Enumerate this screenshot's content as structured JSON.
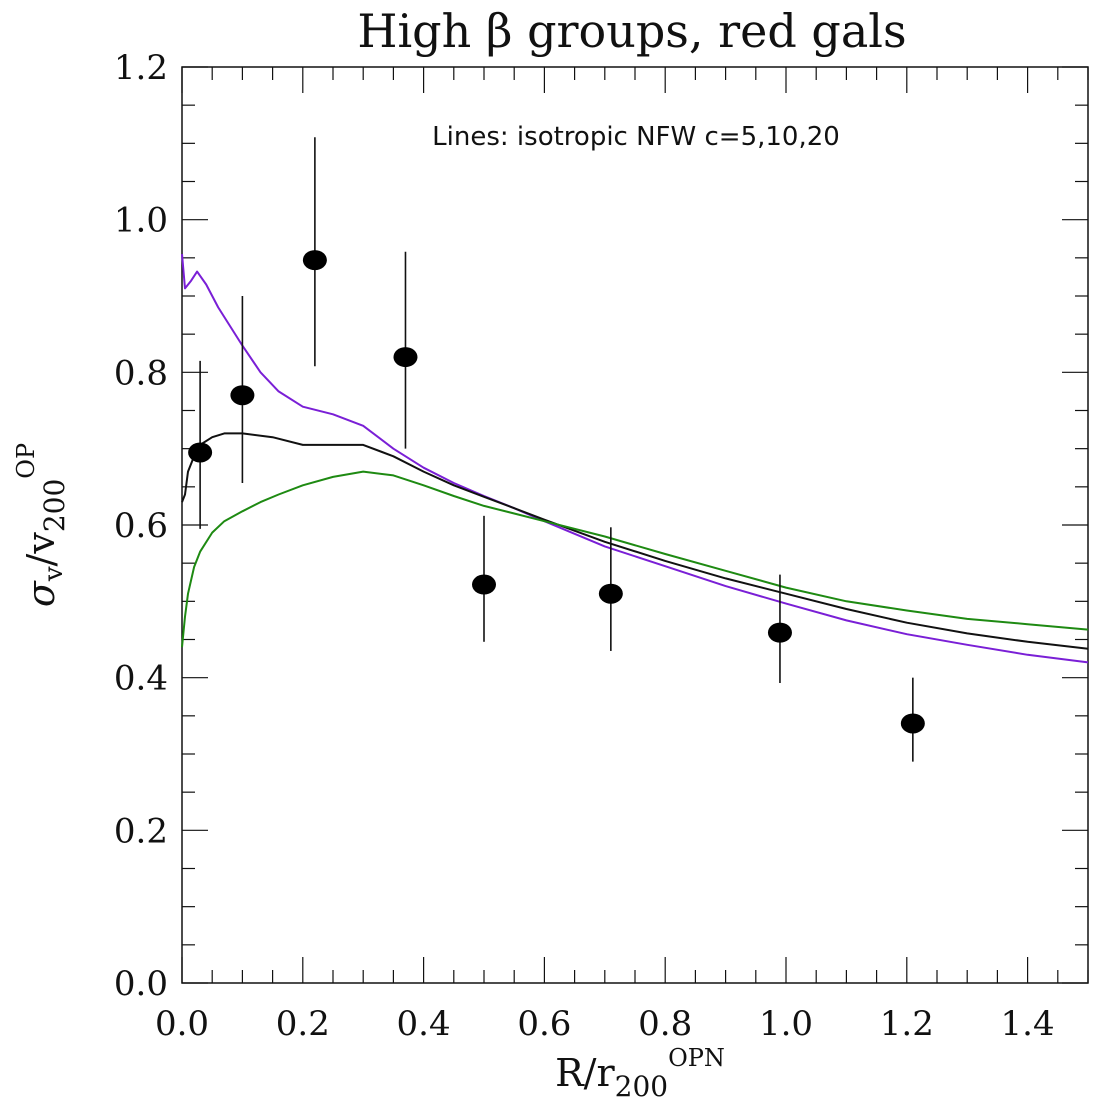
{
  "chart_data": {
    "type": "scatter",
    "title": "High β groups, red gals",
    "annotation": "Lines: isotropic NFW c=5,10,20",
    "xlabel": {
      "base": "R/r",
      "sub": "200",
      "sup": "OPN"
    },
    "ylabel": {
      "sigma": "σ",
      "sigma_sub": "v",
      "mid": "/v",
      "sub": "200",
      "sup": "OP"
    },
    "xlim": [
      0.0,
      1.5
    ],
    "ylim": [
      0.0,
      1.2
    ],
    "x_major_ticks": [
      0.0,
      0.2,
      0.4,
      0.6,
      0.8,
      1.0,
      1.2,
      1.4
    ],
    "x_tick_labels": [
      "0.0",
      "0.2",
      "0.4",
      "0.6",
      "0.8",
      "1.0",
      "1.2",
      "1.4"
    ],
    "y_major_ticks": [
      0.0,
      0.2,
      0.4,
      0.6,
      0.8,
      1.0,
      1.2
    ],
    "y_tick_labels": [
      "0.0",
      "0.2",
      "0.4",
      "0.6",
      "0.8",
      "1.0",
      "1.2"
    ],
    "grid": false,
    "legend": "none",
    "points": [
      {
        "x": 0.03,
        "y": 0.695,
        "ylow": 0.595,
        "yhigh": 0.815
      },
      {
        "x": 0.1,
        "y": 0.77,
        "ylow": 0.655,
        "yhigh": 0.9
      },
      {
        "x": 0.22,
        "y": 0.947,
        "ylow": 0.808,
        "yhigh": 1.108
      },
      {
        "x": 0.37,
        "y": 0.82,
        "ylow": 0.7,
        "yhigh": 0.958
      },
      {
        "x": 0.5,
        "y": 0.522,
        "ylow": 0.447,
        "yhigh": 0.612
      },
      {
        "x": 0.71,
        "y": 0.51,
        "ylow": 0.435,
        "yhigh": 0.597
      },
      {
        "x": 0.99,
        "y": 0.459,
        "ylow": 0.393,
        "yhigh": 0.535
      },
      {
        "x": 1.21,
        "y": 0.34,
        "ylow": 0.29,
        "yhigh": 0.4
      }
    ],
    "series": [
      {
        "color": "#7a1fd6",
        "x": [
          0.0,
          0.005,
          0.015,
          0.025,
          0.04,
          0.06,
          0.08,
          0.1,
          0.13,
          0.16,
          0.2,
          0.25,
          0.3,
          0.35,
          0.4,
          0.45,
          0.5,
          0.55,
          0.6,
          0.7,
          0.8,
          0.9,
          1.0,
          1.1,
          1.2,
          1.3,
          1.4,
          1.5
        ],
        "y": [
          0.955,
          0.91,
          0.92,
          0.932,
          0.915,
          0.885,
          0.86,
          0.835,
          0.8,
          0.775,
          0.755,
          0.745,
          0.73,
          0.7,
          0.675,
          0.655,
          0.638,
          0.622,
          0.605,
          0.572,
          0.546,
          0.52,
          0.497,
          0.475,
          0.457,
          0.443,
          0.43,
          0.42
        ]
      },
      {
        "color": "#111111",
        "x": [
          0.0,
          0.005,
          0.01,
          0.02,
          0.03,
          0.05,
          0.07,
          0.1,
          0.15,
          0.2,
          0.25,
          0.3,
          0.35,
          0.4,
          0.45,
          0.5,
          0.55,
          0.6,
          0.7,
          0.8,
          0.9,
          1.0,
          1.1,
          1.2,
          1.3,
          1.4,
          1.5
        ],
        "y": [
          0.63,
          0.64,
          0.67,
          0.69,
          0.705,
          0.715,
          0.72,
          0.72,
          0.715,
          0.705,
          0.705,
          0.705,
          0.69,
          0.67,
          0.652,
          0.637,
          0.622,
          0.607,
          0.578,
          0.553,
          0.53,
          0.51,
          0.49,
          0.472,
          0.458,
          0.447,
          0.438
        ]
      },
      {
        "color": "#1e8a12",
        "x": [
          0.0,
          0.005,
          0.01,
          0.02,
          0.03,
          0.05,
          0.07,
          0.1,
          0.13,
          0.16,
          0.2,
          0.25,
          0.3,
          0.35,
          0.4,
          0.45,
          0.5,
          0.55,
          0.6,
          0.7,
          0.8,
          0.9,
          1.0,
          1.1,
          1.2,
          1.3,
          1.4,
          1.5
        ],
        "y": [
          0.44,
          0.48,
          0.51,
          0.545,
          0.565,
          0.59,
          0.605,
          0.618,
          0.63,
          0.64,
          0.652,
          0.663,
          0.67,
          0.665,
          0.652,
          0.638,
          0.625,
          0.615,
          0.605,
          0.585,
          0.562,
          0.54,
          0.518,
          0.5,
          0.488,
          0.477,
          0.47,
          0.463
        ]
      }
    ]
  }
}
